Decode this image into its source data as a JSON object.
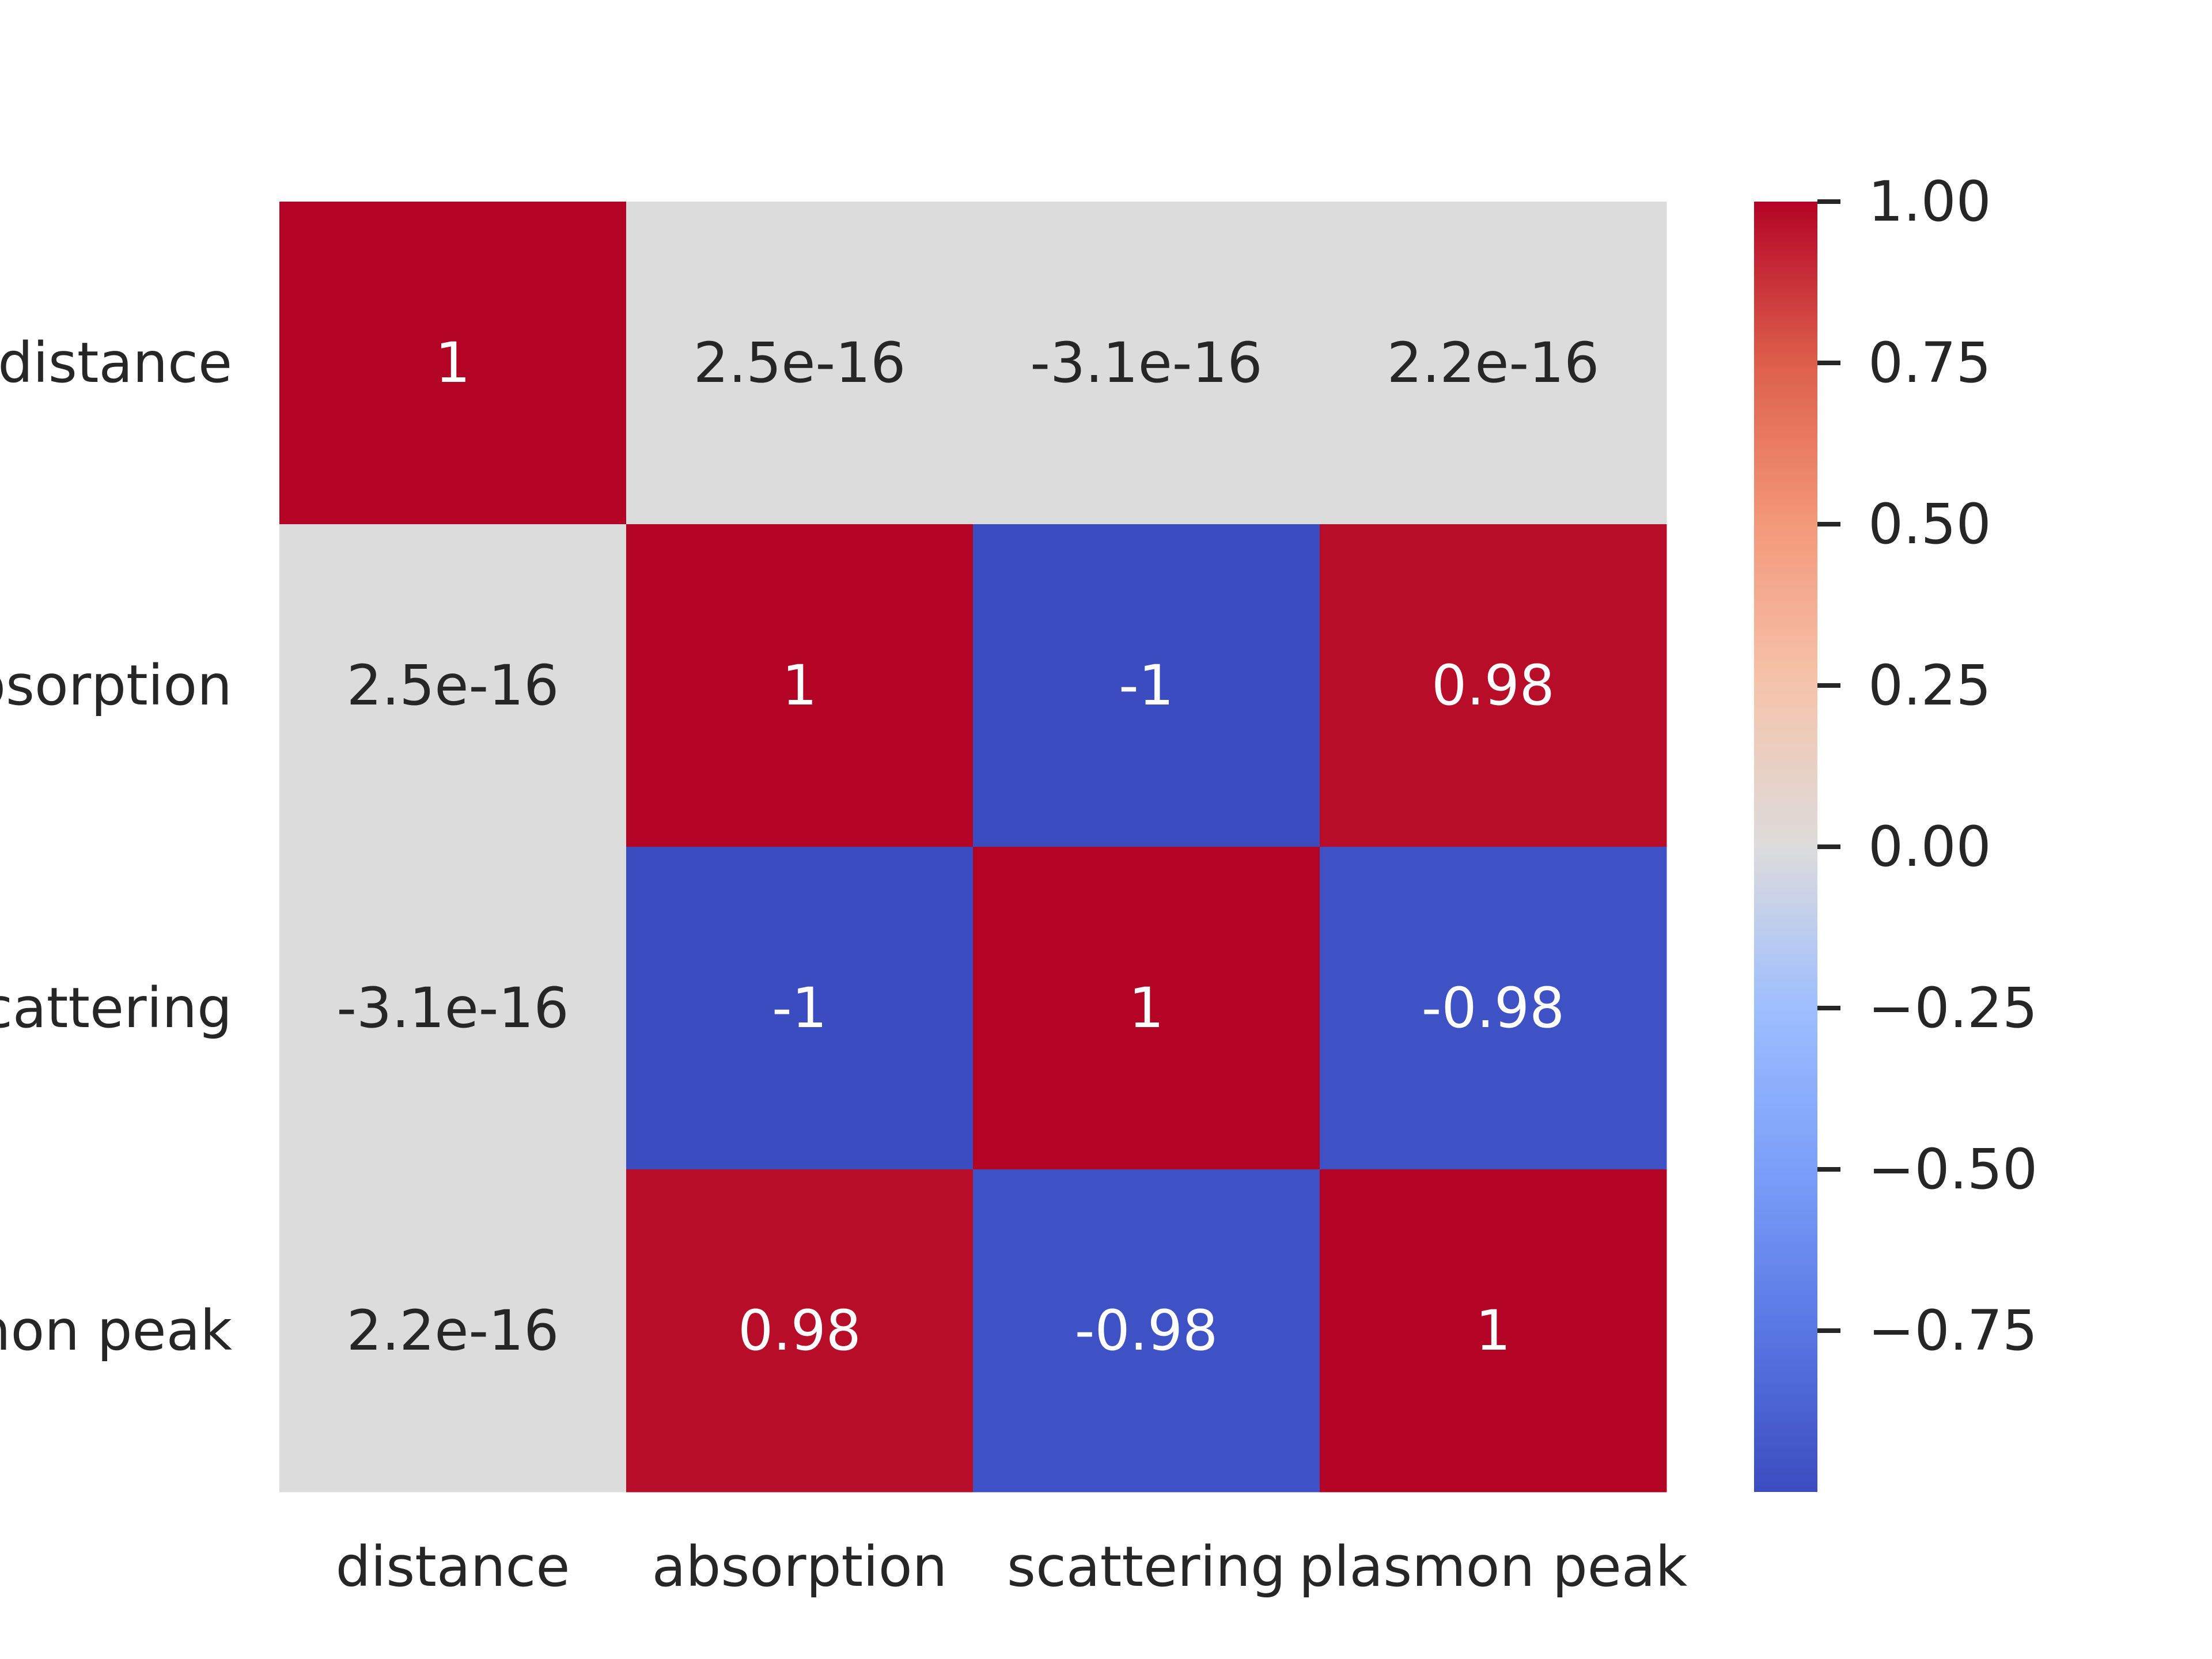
{
  "chart_data": {
    "type": "heatmap",
    "row_labels": [
      "distance",
      "absorption",
      "scattering",
      "plasmon peak"
    ],
    "col_labels": [
      "distance",
      "absorption",
      "scattering",
      "plasmon peak"
    ],
    "values": [
      [
        1,
        2.5e-16,
        -3.1e-16,
        2.2e-16
      ],
      [
        2.5e-16,
        1,
        -1,
        0.98
      ],
      [
        -3.1e-16,
        -1,
        1,
        -0.98
      ],
      [
        2.2e-16,
        0.98,
        -0.98,
        1
      ]
    ],
    "annotations": [
      [
        "1",
        "2.5e-16",
        "-3.1e-16",
        "2.2e-16"
      ],
      [
        "2.5e-16",
        "1",
        "-1",
        "0.98"
      ],
      [
        "-3.1e-16",
        "-1",
        "1",
        "-0.98"
      ],
      [
        "2.2e-16",
        "0.98",
        "-0.98",
        "1"
      ]
    ],
    "colormap": "coolwarm",
    "colorbar": {
      "vmin": -1,
      "vmax": 1,
      "ticks": [
        1.0,
        0.75,
        0.5,
        0.25,
        0.0,
        -0.25,
        -0.5,
        -0.75
      ],
      "tick_labels": [
        "1.00",
        "0.75",
        "0.50",
        "0.25",
        "0.00",
        "−0.25",
        "−0.50",
        "−0.75"
      ]
    },
    "colors": {
      "pos_1": "#b40426",
      "pos_098": "#b70d28",
      "zero": "#dddcdc",
      "neg_1": "#3b4cc0",
      "neg_098": "#3e51c5",
      "text_dark": "#262626",
      "text_light": "#ffffff"
    }
  }
}
